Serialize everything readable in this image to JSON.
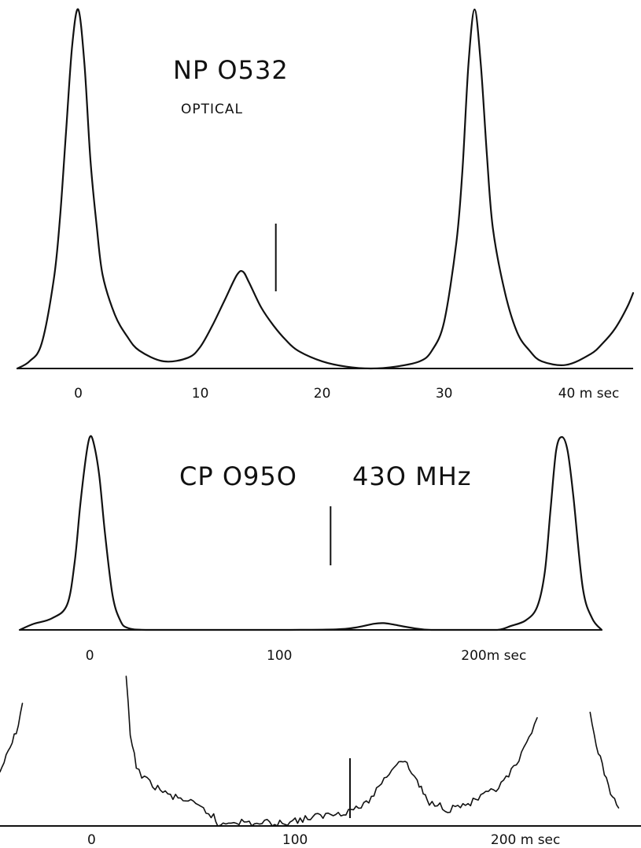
{
  "chart_data": [
    {
      "type": "line",
      "title": "NP O532",
      "subtitle": "OPTICAL",
      "xlabel": "",
      "ylabel": "",
      "xlim": [
        -5,
        45.5
      ],
      "ylim": [
        0,
        1.0
      ],
      "marker_x": 16.2,
      "x_ticks": [
        {
          "value": 0,
          "label": "0"
        },
        {
          "value": 10,
          "label": "10"
        },
        {
          "value": 20,
          "label": "20"
        },
        {
          "value": 30,
          "label": "30"
        },
        {
          "value": 40,
          "label": "40 m sec"
        }
      ],
      "series": [
        {
          "x": [
            -5,
            -4,
            -3,
            -2,
            -1.5,
            -1,
            -0.5,
            0,
            0.5,
            1,
            1.5,
            2,
            3,
            4,
            5,
            7,
            9,
            10,
            11,
            12,
            13,
            13.5,
            14,
            15,
            16,
            17,
            18,
            20,
            22,
            24,
            26,
            28,
            29,
            30,
            31,
            31.5,
            32,
            32.5,
            33,
            33.5,
            34,
            35,
            36,
            37,
            38,
            40,
            42,
            43,
            44,
            45,
            45.5
          ],
          "y": [
            0.0,
            0.02,
            0.07,
            0.25,
            0.42,
            0.66,
            0.9,
            1.0,
            0.85,
            0.58,
            0.4,
            0.26,
            0.15,
            0.09,
            0.05,
            0.02,
            0.03,
            0.06,
            0.12,
            0.19,
            0.26,
            0.27,
            0.24,
            0.17,
            0.12,
            0.08,
            0.05,
            0.02,
            0.005,
            0.0,
            0.005,
            0.02,
            0.05,
            0.13,
            0.35,
            0.55,
            0.85,
            1.0,
            0.85,
            0.6,
            0.39,
            0.21,
            0.1,
            0.05,
            0.02,
            0.01,
            0.04,
            0.07,
            0.11,
            0.17,
            0.21
          ]
        }
      ]
    },
    {
      "type": "line",
      "title": "CP O95O",
      "subtitle": "43O MHz",
      "xlabel": "",
      "ylabel": "",
      "xlim": [
        -37,
        270
      ],
      "ylim": [
        0,
        1.0
      ],
      "marker_x": 127,
      "x_ticks": [
        {
          "value": 0,
          "label": "0"
        },
        {
          "value": 100,
          "label": "100"
        },
        {
          "value": 200,
          "label": "200m sec"
        }
      ],
      "series": [
        {
          "x": [
            -37,
            -30,
            -20,
            -12,
            -8,
            -5,
            -2,
            0,
            2,
            5,
            8,
            12,
            16,
            20,
            30,
            60,
            100,
            130,
            140,
            150,
            155,
            160,
            170,
            180,
            200,
            215,
            222,
            230,
            236,
            240,
            243,
            246,
            249,
            252,
            255,
            260,
            265,
            270
          ],
          "y": [
            0.0,
            0.03,
            0.06,
            0.13,
            0.35,
            0.65,
            0.9,
            1.0,
            0.97,
            0.8,
            0.5,
            0.18,
            0.05,
            0.01,
            0.0,
            0.0,
            0.0,
            0.003,
            0.012,
            0.032,
            0.035,
            0.028,
            0.01,
            0.0,
            0.0,
            0.0,
            0.02,
            0.05,
            0.12,
            0.3,
            0.62,
            0.93,
            1.0,
            0.93,
            0.7,
            0.22,
            0.06,
            0.0
          ]
        }
      ]
    },
    {
      "type": "line",
      "title": "",
      "xlabel": "",
      "ylabel": "",
      "xlim": [
        -45,
        270
      ],
      "ylim": [
        0,
        1.0
      ],
      "marker_x": 127,
      "x_ticks": [
        {
          "value": 0,
          "label": "0"
        },
        {
          "value": 100,
          "label": "100"
        },
        {
          "value": 200,
          "label": "200 m sec"
        }
      ],
      "series": [
        {
          "x": [
            -45,
            -42,
            -39,
            -36,
            -34
          ],
          "y": [
            0.3,
            0.38,
            0.46,
            0.56,
            0.68
          ]
        },
        {
          "x": [
            17,
            19,
            22,
            26,
            30,
            35,
            40,
            45,
            50,
            55,
            60,
            62,
            66,
            70,
            75,
            80,
            85,
            90,
            95,
            100,
            105,
            110,
            115,
            120,
            125,
            130,
            135,
            140,
            145,
            150,
            153,
            156,
            160,
            163,
            166,
            170,
            175,
            180,
            185,
            190,
            195,
            200,
            205,
            210,
            215,
            219
          ],
          "y": [
            0.83,
            0.5,
            0.33,
            0.26,
            0.23,
            0.19,
            0.16,
            0.15,
            0.12,
            0.09,
            0.05,
            0.0,
            0.02,
            0.03,
            0.02,
            0.01,
            0.02,
            0.01,
            0.02,
            0.03,
            0.04,
            0.05,
            0.06,
            0.07,
            0.08,
            0.1,
            0.12,
            0.2,
            0.28,
            0.35,
            0.37,
            0.32,
            0.25,
            0.18,
            0.12,
            0.13,
            0.09,
            0.11,
            0.12,
            0.15,
            0.18,
            0.21,
            0.28,
            0.36,
            0.48,
            0.6
          ]
        },
        {
          "x": [
            245,
            247,
            250,
            253,
            256,
            259
          ],
          "y": [
            0.63,
            0.5,
            0.37,
            0.26,
            0.16,
            0.1
          ]
        }
      ]
    }
  ]
}
